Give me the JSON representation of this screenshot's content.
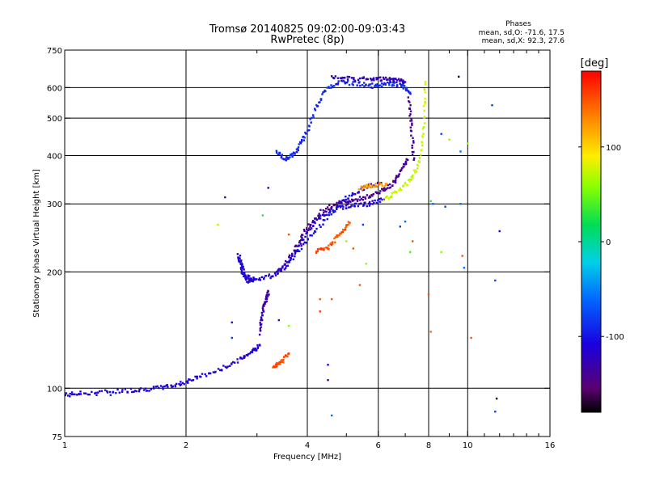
{
  "chart_data": {
    "type": "scatter",
    "title": "Tromsø 20140825 09:02:00-09:03:43",
    "subtitle": "RwPretec (8p)",
    "xlabel": "Frequency [MHz]",
    "ylabel": "Stationary phase Virtual Height [km]",
    "x_scale": "log",
    "y_scale": "log",
    "xlim": [
      1,
      16
    ],
    "ylim": [
      75,
      750
    ],
    "x_ticks": [
      1,
      2,
      4,
      6,
      8,
      10,
      16
    ],
    "x_tick_labels": [
      "1",
      "2",
      "4",
      "6",
      "8",
      "10",
      "16"
    ],
    "x_minor_ticks": [
      3,
      5,
      7,
      9,
      11,
      12,
      13,
      14,
      15
    ],
    "y_ticks": [
      75,
      100,
      200,
      300,
      400,
      500,
      600,
      750
    ],
    "y_tick_labels": [
      "75",
      "100",
      "200",
      "300",
      "400",
      "500",
      "600",
      "750"
    ],
    "grid": true,
    "phases_stats": {
      "heading": "Phases",
      "o_line": "mean, sd,O: -71.6, 17.5",
      "x_line": "mean, sd,X:  92.3, 27.6"
    },
    "colorbar": {
      "label": "[deg]",
      "range": [
        -180,
        180
      ],
      "ticks": [
        100,
        0,
        -100
      ],
      "tick_labels": [
        "100",
        "0",
        "-100"
      ],
      "colormap": "rainbow"
    },
    "traces": [
      {
        "phase": -110,
        "x": [
          1.0,
          1.1,
          1.3,
          1.5,
          1.7,
          1.9,
          2.1,
          2.4,
          2.7,
          2.9,
          3.05
        ],
        "y": [
          96,
          97,
          98,
          99,
          100,
          102,
          106,
          111,
          118,
          124,
          129
        ]
      },
      {
        "phase": -110,
        "x": [
          2.95,
          2.85,
          2.75,
          2.7,
          2.8,
          3.0,
          3.3,
          3.55,
          3.8,
          4.1,
          4.4,
          4.8,
          5.2,
          5.7,
          6.2
        ],
        "y": [
          190,
          190,
          200,
          222,
          195,
          192,
          196,
          208,
          232,
          262,
          283,
          293,
          297,
          300,
          308
        ]
      },
      {
        "phase": -140,
        "x": [
          3.4,
          3.7,
          3.95,
          4.3,
          4.7,
          5.1,
          5.6,
          6.1,
          6.5,
          6.8,
          7.1
        ],
        "y": [
          200,
          225,
          255,
          285,
          300,
          305,
          312,
          323,
          338,
          362,
          390
        ]
      },
      {
        "phase": -105,
        "x": [
          3.6,
          4.0,
          4.5,
          5.0,
          5.5,
          6.1
        ],
        "y": [
          212,
          242,
          278,
          310,
          330,
          340
        ]
      },
      {
        "phase": -90,
        "x": [
          3.35,
          3.55,
          3.75,
          3.95,
          4.2,
          4.5,
          4.9,
          5.4,
          5.9,
          6.4,
          6.9,
          7.2
        ],
        "y": [
          410,
          392,
          410,
          448,
          535,
          600,
          620,
          613,
          605,
          612,
          608,
          582
        ]
      },
      {
        "phase": -125,
        "x": [
          4.6,
          5.2,
          5.8,
          6.2,
          6.6,
          7.0
        ],
        "y": [
          635,
          632,
          630,
          630,
          628,
          620
        ]
      },
      {
        "phase": -140,
        "x": [
          7.15,
          7.25,
          7.35
        ],
        "y": [
          560,
          480,
          390
        ]
      },
      {
        "phase": 75,
        "x": [
          6.2,
          6.7,
          7.2,
          7.6,
          7.8,
          7.85
        ],
        "y": [
          308,
          322,
          345,
          385,
          480,
          620
        ]
      },
      {
        "phase": 150,
        "x": [
          4.2,
          4.5,
          4.8,
          5.1
        ],
        "y": [
          226,
          230,
          250,
          268
        ]
      },
      {
        "phase": 125,
        "x": [
          5.4,
          5.8,
          6.3
        ],
        "y": [
          330,
          335,
          338
        ]
      },
      {
        "phase": 155,
        "x": [
          3.3,
          3.45,
          3.6
        ],
        "y": [
          113,
          117,
          123
        ]
      },
      {
        "phase": -130,
        "x": [
          3.05,
          3.1,
          3.15,
          3.2
        ],
        "y": [
          138,
          158,
          168,
          178
        ]
      }
    ],
    "scatter_points": [
      {
        "x": 3.2,
        "y": 330,
        "phase": -120
      },
      {
        "x": 2.5,
        "y": 312,
        "phase": -120
      },
      {
        "x": 2.4,
        "y": 265,
        "phase": 70
      },
      {
        "x": 3.1,
        "y": 280,
        "phase": 30
      },
      {
        "x": 3.6,
        "y": 250,
        "phase": 150
      },
      {
        "x": 2.6,
        "y": 148,
        "phase": -100
      },
      {
        "x": 2.6,
        "y": 135,
        "phase": -80
      },
      {
        "x": 3.4,
        "y": 150,
        "phase": -100
      },
      {
        "x": 3.6,
        "y": 145,
        "phase": 60
      },
      {
        "x": 4.3,
        "y": 158,
        "phase": 160
      },
      {
        "x": 4.3,
        "y": 170,
        "phase": 150
      },
      {
        "x": 4.6,
        "y": 170,
        "phase": 150
      },
      {
        "x": 4.5,
        "y": 115,
        "phase": -110
      },
      {
        "x": 4.5,
        "y": 105,
        "phase": -140
      },
      {
        "x": 4.6,
        "y": 85,
        "phase": -60
      },
      {
        "x": 5.0,
        "y": 240,
        "phase": 60
      },
      {
        "x": 5.2,
        "y": 230,
        "phase": 150
      },
      {
        "x": 5.6,
        "y": 210,
        "phase": 60
      },
      {
        "x": 5.5,
        "y": 265,
        "phase": -80
      },
      {
        "x": 6.8,
        "y": 262,
        "phase": -80
      },
      {
        "x": 7.2,
        "y": 225,
        "phase": 40
      },
      {
        "x": 7.3,
        "y": 240,
        "phase": 150
      },
      {
        "x": 7.0,
        "y": 270,
        "phase": -60
      },
      {
        "x": 8.1,
        "y": 305,
        "phase": 30
      },
      {
        "x": 8.2,
        "y": 300,
        "phase": -60
      },
      {
        "x": 8.0,
        "y": 175,
        "phase": 150
      },
      {
        "x": 8.1,
        "y": 140,
        "phase": 140
      },
      {
        "x": 8.6,
        "y": 225,
        "phase": 60
      },
      {
        "x": 8.8,
        "y": 295,
        "phase": -80
      },
      {
        "x": 8.6,
        "y": 455,
        "phase": -80
      },
      {
        "x": 9.0,
        "y": 440,
        "phase": 60
      },
      {
        "x": 9.6,
        "y": 410,
        "phase": -60
      },
      {
        "x": 9.6,
        "y": 300,
        "phase": -60
      },
      {
        "x": 9.7,
        "y": 220,
        "phase": 150
      },
      {
        "x": 9.8,
        "y": 205,
        "phase": -60
      },
      {
        "x": 10.2,
        "y": 135,
        "phase": 150
      },
      {
        "x": 9.5,
        "y": 640,
        "phase": -170
      },
      {
        "x": 11.5,
        "y": 540,
        "phase": -80
      },
      {
        "x": 12.0,
        "y": 255,
        "phase": -120
      },
      {
        "x": 11.7,
        "y": 190,
        "phase": -80
      },
      {
        "x": 11.8,
        "y": 94,
        "phase": -170
      },
      {
        "x": 11.7,
        "y": 87,
        "phase": -80
      },
      {
        "x": 10.0,
        "y": 430,
        "phase": 60
      },
      {
        "x": 5.4,
        "y": 185,
        "phase": 150
      },
      {
        "x": 1.3,
        "y": 96,
        "phase": -90
      },
      {
        "x": 1.2,
        "y": 96,
        "phase": -110
      }
    ]
  }
}
